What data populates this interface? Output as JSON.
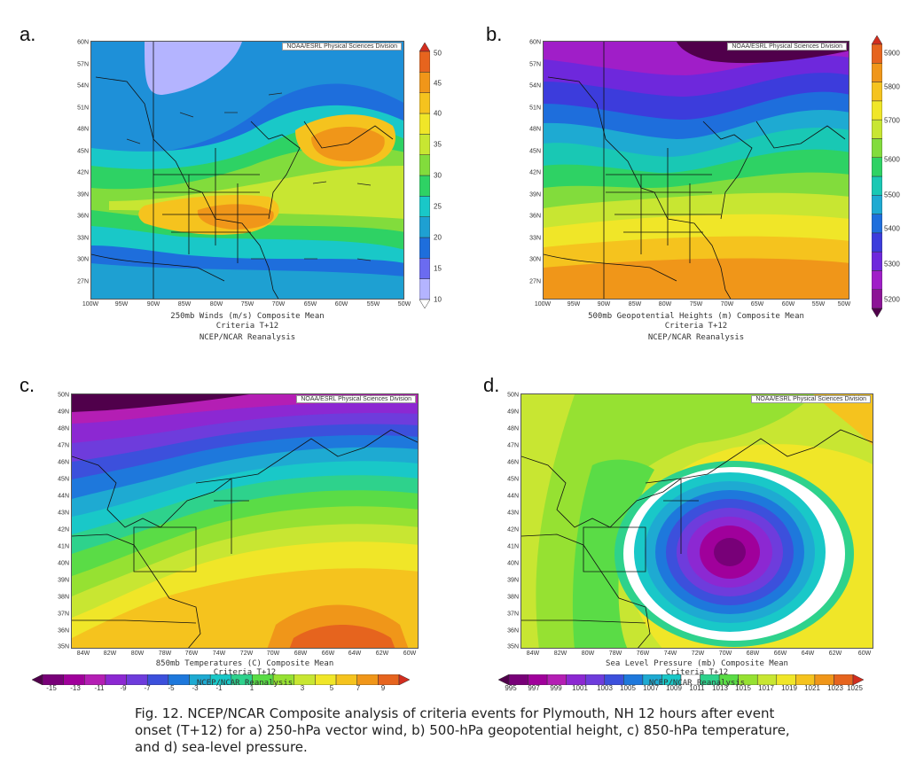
{
  "panels": [
    {
      "id": "a",
      "letter": "a.",
      "credit": "NOAA/ESRL Physical Sciences Division",
      "lat_labels": [
        "60N",
        "57N",
        "54N",
        "51N",
        "48N",
        "45N",
        "42N",
        "39N",
        "36N",
        "33N",
        "30N",
        "27N"
      ],
      "lon_labels": [
        "100W",
        "95W",
        "90W",
        "85W",
        "80W",
        "75W",
        "70W",
        "65W",
        "60W",
        "55W",
        "50W"
      ],
      "title_line1": "250mb Winds (m/s)   Composite Mean",
      "title_line2": "Criteria T+12",
      "title_line3": "NCEP/NCAR Reanalysis",
      "colorbar_labels": [
        "10",
        "15",
        "20",
        "25",
        "30",
        "35",
        "40",
        "45",
        "50"
      ],
      "colorbar_colors": [
        "#ffffff",
        "#b4b4ff",
        "#6b6bf0",
        "#1e6edc",
        "#1ea0d2",
        "#19c8c8",
        "#2ed264",
        "#82dc3c",
        "#c8e632",
        "#f0e628",
        "#f5c31e",
        "#f09619",
        "#e6641e",
        "#d22d1e"
      ]
    },
    {
      "id": "b",
      "letter": "b.",
      "credit": "NOAA/ESRL Physical Sciences Division",
      "lat_labels": [
        "60N",
        "57N",
        "54N",
        "51N",
        "48N",
        "45N",
        "42N",
        "39N",
        "36N",
        "33N",
        "30N",
        "27N"
      ],
      "lon_labels": [
        "100W",
        "95W",
        "90W",
        "85W",
        "80W",
        "75W",
        "70W",
        "65W",
        "60W",
        "55W",
        "50W"
      ],
      "title_line1": "500mb Geopotential Heights (m)   Composite Mean",
      "title_line2": "Criteria T+12",
      "title_line3": "NCEP/NCAR Reanalysis",
      "colorbar_labels": [
        "5200",
        "5300",
        "5400",
        "5500",
        "5600",
        "5700",
        "5800",
        "5900"
      ],
      "colorbar_colors": [
        "#50004b",
        "#8c1496",
        "#a01ec8",
        "#6e28dc",
        "#3c3cdc",
        "#1e6edc",
        "#1eaad2",
        "#19c8b4",
        "#2ed264",
        "#82dc3c",
        "#c8e632",
        "#f0e628",
        "#f5c31e",
        "#f09619",
        "#e6641e",
        "#d22d1e"
      ]
    },
    {
      "id": "c",
      "letter": "c.",
      "credit": "NOAA/ESRL Physical Sciences Division",
      "lat_labels": [
        "50N",
        "49N",
        "48N",
        "47N",
        "46N",
        "45N",
        "44N",
        "43N",
        "42N",
        "41N",
        "40N",
        "39N",
        "38N",
        "37N",
        "36N",
        "35N"
      ],
      "lon_labels": [
        "84W",
        "82W",
        "80W",
        "78W",
        "76W",
        "74W",
        "72W",
        "70W",
        "68W",
        "66W",
        "64W",
        "62W",
        "60W"
      ],
      "title_line1": "850mb Temperatures (C)   Composite Mean",
      "title_line2": "Criteria T+12",
      "title_line3": "NCEP/NCAR Reanalysis",
      "colorbar_labels": [
        "-15",
        "-13",
        "-11",
        "-9",
        "-7",
        "-5",
        "-3",
        "-1",
        "1",
        "3",
        "5",
        "7",
        "9"
      ],
      "colorbar_colors": [
        "#50004b",
        "#780078",
        "#a0009b",
        "#b41eb4",
        "#8c28d2",
        "#6e3cdc",
        "#3c50dc",
        "#1e78dc",
        "#1eaad2",
        "#19c8c8",
        "#2ed28c",
        "#5adc46",
        "#96e132",
        "#c8e632",
        "#f0e628",
        "#f5c31e",
        "#f09619",
        "#e6641e",
        "#d22d1e"
      ]
    },
    {
      "id": "d",
      "letter": "d.",
      "credit": "NOAA/ESRL Physical Sciences Division",
      "lat_labels": [
        "50N",
        "49N",
        "48N",
        "47N",
        "46N",
        "45N",
        "44N",
        "43N",
        "42N",
        "41N",
        "40N",
        "39N",
        "38N",
        "37N",
        "36N",
        "35N"
      ],
      "lon_labels": [
        "84W",
        "82W",
        "80W",
        "78W",
        "76W",
        "74W",
        "72W",
        "70W",
        "68W",
        "66W",
        "64W",
        "62W",
        "60W"
      ],
      "title_line1": "Sea Level Pressure (mb)   Composite Mean",
      "title_line2": "Criteria T+12",
      "title_line3": "NCEP/NCAR Reanalysis",
      "colorbar_labels": [
        "995",
        "997",
        "999",
        "1001",
        "1003",
        "1005",
        "1007",
        "1009",
        "1011",
        "1013",
        "1015",
        "1017",
        "1019",
        "1021",
        "1023",
        "1025"
      ],
      "colorbar_colors": [
        "#50004b",
        "#780078",
        "#a0009b",
        "#b41eb4",
        "#8c28d2",
        "#6e3cdc",
        "#3c50dc",
        "#1e78dc",
        "#1eaad2",
        "#19c8c8",
        "#ffffff",
        "#2ed28c",
        "#5adc46",
        "#96e132",
        "#c8e632",
        "#f0e628",
        "#f5c31e",
        "#f09619",
        "#e6641e",
        "#d22d1e"
      ]
    }
  ],
  "caption": {
    "line1": "Fig. 12.  NCEP/NCAR Composite analysis of criteria events for Plymouth, NH 12 hours after event",
    "line2": "onset (T+12) for a) 250-hPa vector wind, b) 500-hPa geopotential height, c) 850-hPa temperature,",
    "line3": "and d) sea-level pressure."
  }
}
